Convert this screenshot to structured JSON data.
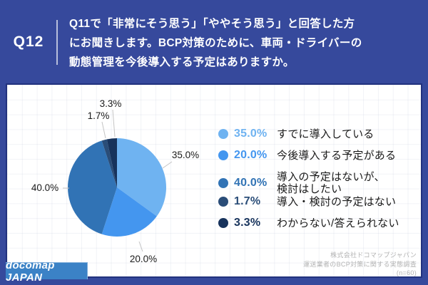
{
  "header": {
    "question_number": "Q12",
    "question_lines": [
      "Q11で「非常にそう思う」「ややそう思う」と回答した方",
      "にお聞きします。BCP対策のために、車両・ドライバーの",
      "動態管理を今後導入する予定はありますか。"
    ]
  },
  "chart_data": {
    "type": "pie",
    "title": "",
    "start_angle_deg": -90,
    "direction": "clockwise",
    "labels": [
      "すでに導入している",
      "今後導入する予定がある",
      "導入の予定はないが、検討はしたい",
      "導入・検討の予定はない",
      "わからない/答えられない"
    ],
    "values": [
      35.0,
      20.0,
      40.0,
      1.7,
      3.3
    ],
    "data_labels": [
      "35.0%",
      "20.0%",
      "40.0%",
      "1.7%",
      "3.3%"
    ],
    "colors": [
      "#6fb3f1",
      "#4496ef",
      "#3173b5",
      "#2a4d78",
      "#17335c"
    ],
    "legend_position": "right"
  },
  "legend": {
    "items": [
      {
        "percent": "35.0%",
        "label_lines": [
          "すでに導入している"
        ],
        "color": "#6fb3f1"
      },
      {
        "percent": "20.0%",
        "label_lines": [
          "今後導入する予定がある"
        ],
        "color": "#4496ef"
      },
      {
        "percent": "40.0%",
        "label_lines": [
          "導入の予定はないが、",
          "検討はしたい"
        ],
        "color": "#3173b5"
      },
      {
        "percent": "1.7%",
        "label_lines": [
          "導入・検討の予定はない"
        ],
        "color": "#2a4d78"
      },
      {
        "percent": "3.3%",
        "label_lines": [
          "わからない/答えられない"
        ],
        "color": "#17335c"
      }
    ]
  },
  "footer": {
    "logo_text": "docomap JAPAN",
    "source_lines": [
      "株式会社ドコマップジャパン",
      "運送業者のBCP対策に関する実態調査",
      "(n=60)"
    ]
  },
  "colors": {
    "navy_background": "#36499c",
    "panel_border": "#22327e",
    "logo_blue": "#3b82c6",
    "label_text": "#1a1a1a",
    "leader_line": "#c4c4c4",
    "source_text": "#b2b2b2"
  }
}
